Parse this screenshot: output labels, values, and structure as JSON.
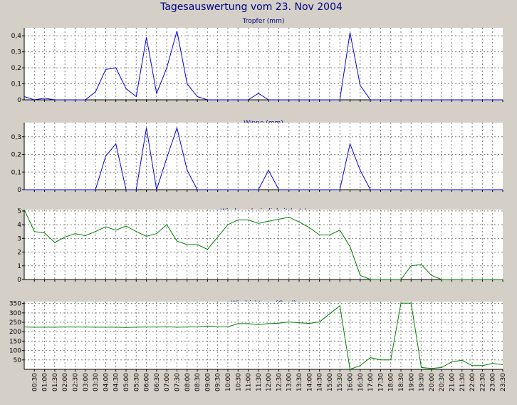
{
  "page": {
    "title": "Tagesauswertung vom 23. Nov 2004"
  },
  "colors": {
    "background": "#d4d0c8",
    "plot_background": "#ffffff",
    "title_text": "#000080",
    "grid": "#808080",
    "rain_series": "#0000e0",
    "wind_series": "#008000"
  },
  "x_tick_labels": [
    "00:30",
    "01:00",
    "01:30",
    "02:00",
    "02:30",
    "03:00",
    "03:30",
    "04:00",
    "04:30",
    "05:00",
    "05:30",
    "06:00",
    "06:30",
    "07:00",
    "07:30",
    "08:00",
    "08:30",
    "09:00",
    "09:30",
    "10:00",
    "10:30",
    "11:00",
    "11:30",
    "12:00",
    "12:30",
    "13:00",
    "13:30",
    "14:00",
    "14:30",
    "15:00",
    "15:30",
    "16:00",
    "16:30",
    "17:00",
    "17:30",
    "18:00",
    "18:30",
    "19:00",
    "19:30",
    "20:00",
    "20:30",
    "21:00",
    "21:30",
    "22:00",
    "22:30",
    "23:00",
    "23:30"
  ],
  "chart_data": [
    {
      "type": "line",
      "title": "Tropfer (mm)",
      "ylim": [
        0,
        0.45
      ],
      "yticks": [
        0,
        0.1,
        0.2,
        0.3,
        0.4
      ],
      "ytick_labels": [
        "0",
        "0,1",
        "0,2",
        "0,3",
        "0,4"
      ],
      "grid": true,
      "series_color": "rain_series",
      "x_index": [
        0,
        1,
        2,
        3,
        4,
        5,
        6,
        7,
        8,
        9,
        10,
        11,
        12,
        13,
        14,
        15,
        16,
        17,
        18,
        19,
        20,
        21,
        22,
        23,
        24,
        25,
        26,
        27,
        28,
        29,
        30,
        31,
        32,
        33,
        34,
        35,
        36,
        37,
        38,
        39,
        40,
        41,
        42,
        43,
        44,
        45,
        46,
        47
      ],
      "values": [
        0.02,
        0,
        0.01,
        0,
        0,
        0,
        0,
        0.05,
        0.19,
        0.2,
        0.07,
        0.02,
        0.39,
        0.04,
        0.2,
        0.43,
        0.1,
        0.02,
        0,
        0,
        0,
        0,
        0,
        0.04,
        0,
        0,
        0,
        0,
        0,
        0,
        0,
        0,
        0.42,
        0.09,
        0,
        0,
        0,
        0,
        0,
        0,
        0,
        0,
        0,
        0,
        0,
        0,
        0,
        0
      ]
    },
    {
      "type": "line",
      "title": "Wippe (mm)",
      "ylim": [
        0,
        0.38
      ],
      "yticks": [
        0,
        0.1,
        0.2,
        0.3
      ],
      "ytick_labels": [
        "0",
        "0,1",
        "0,2",
        "0,3"
      ],
      "grid": true,
      "series_color": "rain_series",
      "x_index": [
        0,
        1,
        2,
        3,
        4,
        5,
        6,
        7,
        8,
        9,
        10,
        11,
        12,
        13,
        14,
        15,
        16,
        17,
        18,
        19,
        20,
        21,
        22,
        23,
        24,
        25,
        26,
        27,
        28,
        29,
        30,
        31,
        32,
        33,
        34,
        35,
        36,
        37,
        38,
        39,
        40,
        41,
        42,
        43,
        44,
        45,
        46,
        47
      ],
      "values": [
        0,
        0,
        0,
        0,
        0,
        0,
        0,
        0,
        0.19,
        0.26,
        0,
        0,
        0.35,
        0,
        0.18,
        0.35,
        0.11,
        0,
        0,
        0,
        0,
        0,
        0,
        0,
        0.11,
        0,
        0,
        0,
        0,
        0,
        0,
        0,
        0.26,
        0.11,
        0,
        0,
        0,
        0,
        0,
        0,
        0,
        0,
        0,
        0,
        0,
        0,
        0,
        0
      ]
    },
    {
      "type": "line",
      "title": "Windgeschwindigkeit (m/s)",
      "ylim": [
        0,
        5.1
      ],
      "yticks": [
        0,
        1,
        2,
        3,
        4,
        5
      ],
      "ytick_labels": [
        "0",
        "1",
        "2",
        "3",
        "4",
        "5"
      ],
      "grid": true,
      "series_color": "wind_series",
      "x_index": [
        0,
        1,
        2,
        3,
        4,
        5,
        6,
        7,
        8,
        9,
        10,
        11,
        12,
        13,
        14,
        15,
        16,
        17,
        18,
        19,
        20,
        21,
        22,
        23,
        24,
        25,
        26,
        27,
        28,
        29,
        30,
        31,
        32,
        33,
        34,
        35,
        36,
        37,
        38,
        39,
        40,
        41,
        42,
        43,
        44,
        45,
        46,
        47
      ],
      "values": [
        5.1,
        3.5,
        3.4,
        2.7,
        3.1,
        3.35,
        3.2,
        3.5,
        3.85,
        3.6,
        3.9,
        3.5,
        3.15,
        3.35,
        4.0,
        2.8,
        2.55,
        2.55,
        2.2,
        3.1,
        4.0,
        4.35,
        4.35,
        4.1,
        4.25,
        4.4,
        4.55,
        4.2,
        3.8,
        3.25,
        3.25,
        3.6,
        2.4,
        0.3,
        0,
        0,
        0,
        0,
        1.0,
        1.1,
        0.3,
        0,
        0,
        0,
        0,
        0,
        0,
        0
      ]
    },
    {
      "type": "line",
      "title": "Windrichtung (Grad)",
      "ylim": [
        0,
        360
      ],
      "yticks": [
        50,
        100,
        150,
        200,
        250,
        300,
        350
      ],
      "ytick_labels": [
        "50",
        "100",
        "150",
        "200",
        "250",
        "300",
        "350"
      ],
      "grid": true,
      "series_color": "wind_series",
      "x_index": [
        0,
        1,
        2,
        3,
        4,
        5,
        6,
        7,
        8,
        9,
        10,
        11,
        12,
        13,
        14,
        15,
        16,
        17,
        18,
        19,
        20,
        21,
        22,
        23,
        24,
        25,
        26,
        27,
        28,
        29,
        30,
        31,
        32,
        33,
        34,
        35,
        36,
        37,
        38,
        39,
        40,
        41,
        42,
        43,
        44,
        45,
        46,
        47
      ],
      "values": [
        225,
        224,
        224,
        224,
        225,
        225,
        225,
        224,
        224,
        224,
        223,
        224,
        225,
        225,
        226,
        224,
        225,
        226,
        230,
        226,
        226,
        243,
        243,
        238,
        243,
        245,
        252,
        248,
        244,
        252,
        295,
        338,
        0,
        20,
        62,
        50,
        50,
        352,
        352,
        10,
        5,
        10,
        40,
        48,
        20,
        20,
        32,
        25
      ]
    }
  ]
}
